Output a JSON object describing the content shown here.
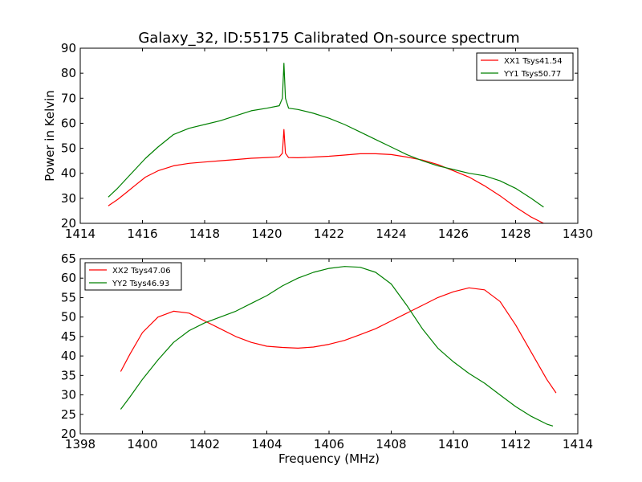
{
  "chart_data": [
    {
      "type": "line",
      "title": "Galaxy_32, ID:55175 Calibrated On-source spectrum",
      "xlabel": "",
      "ylabel": "Power in Kelvin",
      "xlim": [
        1414,
        1430
      ],
      "ylim": [
        20,
        90
      ],
      "x_ticks": [
        "1414",
        "1416",
        "1418",
        "1420",
        "1422",
        "1424",
        "1426",
        "1428",
        "1430"
      ],
      "y_ticks": [
        "20",
        "30",
        "40",
        "50",
        "60",
        "70",
        "80",
        "90"
      ],
      "legend_position": "top-right",
      "grid": false,
      "series": [
        {
          "name": "XX1 Tsys41.54",
          "color": "#ff0000",
          "x": [
            1414.9,
            1415.2,
            1415.5,
            1415.8,
            1416.1,
            1416.5,
            1417.0,
            1417.5,
            1418.0,
            1418.5,
            1419.0,
            1419.5,
            1420.0,
            1420.4,
            1420.5,
            1420.55,
            1420.6,
            1420.7,
            1421.0,
            1421.5,
            1422.0,
            1422.5,
            1423.0,
            1423.5,
            1424.0,
            1424.5,
            1425.0,
            1425.5,
            1426.0,
            1426.5,
            1427.0,
            1427.5,
            1428.0,
            1428.5,
            1428.9
          ],
          "y": [
            27,
            29.5,
            32.5,
            35.5,
            38.5,
            41,
            43,
            44,
            44.5,
            45,
            45.5,
            46,
            46.3,
            46.6,
            48,
            57.5,
            48,
            46.3,
            46.2,
            46.5,
            46.8,
            47.3,
            47.8,
            47.8,
            47.5,
            46.5,
            45.3,
            43.5,
            41,
            38.5,
            35,
            31,
            26.5,
            22.5,
            20
          ]
        },
        {
          "name": "YY1 Tsys50.77",
          "color": "#008000",
          "x": [
            1414.9,
            1415.2,
            1415.5,
            1415.8,
            1416.1,
            1416.5,
            1417.0,
            1417.5,
            1418.0,
            1418.5,
            1419.0,
            1419.5,
            1420.0,
            1420.4,
            1420.5,
            1420.55,
            1420.6,
            1420.7,
            1421.0,
            1421.5,
            1422.0,
            1422.5,
            1423.0,
            1423.5,
            1424.0,
            1424.5,
            1425.0,
            1425.5,
            1426.0,
            1426.5,
            1427.0,
            1427.5,
            1428.0,
            1428.5,
            1428.9
          ],
          "y": [
            30.5,
            34,
            38,
            42,
            46,
            50.5,
            55.5,
            58,
            59.5,
            61,
            63,
            65,
            66,
            67,
            70,
            84,
            70,
            66,
            65.5,
            64,
            62,
            59.5,
            56.5,
            53.5,
            50.5,
            47.5,
            45,
            43,
            41.5,
            40,
            39,
            37,
            34,
            30,
            26.5
          ]
        }
      ]
    },
    {
      "type": "line",
      "title": "",
      "xlabel": "Frequency (MHz)",
      "ylabel": "",
      "xlim": [
        1398,
        1414
      ],
      "ylim": [
        20,
        65
      ],
      "x_ticks": [
        "1398",
        "1400",
        "1402",
        "1404",
        "1406",
        "1408",
        "1410",
        "1412",
        "1414"
      ],
      "y_ticks": [
        "20",
        "25",
        "30",
        "35",
        "40",
        "45",
        "50",
        "55",
        "60",
        "65"
      ],
      "legend_position": "top-left",
      "grid": false,
      "series": [
        {
          "name": "XX2 Tsys47.06",
          "color": "#ff0000",
          "x": [
            1399.3,
            1399.6,
            1400.0,
            1400.5,
            1401.0,
            1401.5,
            1402.0,
            1402.5,
            1403.0,
            1403.5,
            1404.0,
            1404.5,
            1405.0,
            1405.5,
            1406.0,
            1406.5,
            1407.0,
            1407.5,
            1408.0,
            1408.5,
            1409.0,
            1409.5,
            1410.0,
            1410.5,
            1411.0,
            1411.5,
            1412.0,
            1412.5,
            1413.0,
            1413.3
          ],
          "y": [
            36,
            40.5,
            46,
            50,
            51.5,
            51,
            49,
            47,
            45,
            43.5,
            42.5,
            42.2,
            42,
            42.3,
            43,
            44,
            45.5,
            47,
            49,
            51,
            53,
            55,
            56.5,
            57.5,
            57,
            54,
            48,
            41,
            34,
            30.5
          ]
        },
        {
          "name": "YY2 Tsys46.93",
          "color": "#008000",
          "x": [
            1399.3,
            1399.6,
            1400.0,
            1400.5,
            1401.0,
            1401.5,
            1402.0,
            1402.5,
            1403.0,
            1403.5,
            1404.0,
            1404.5,
            1405.0,
            1405.5,
            1406.0,
            1406.5,
            1407.0,
            1407.5,
            1408.0,
            1408.5,
            1409.0,
            1409.5,
            1410.0,
            1410.5,
            1411.0,
            1411.5,
            1412.0,
            1412.5,
            1413.0,
            1413.2
          ],
          "y": [
            26.3,
            29.5,
            34,
            39,
            43.5,
            46.5,
            48.5,
            50,
            51.5,
            53.5,
            55.5,
            58,
            60,
            61.5,
            62.5,
            63,
            62.8,
            61.5,
            58.5,
            53,
            47,
            42,
            38.5,
            35.5,
            33,
            30,
            27,
            24.5,
            22.5,
            22
          ]
        }
      ]
    }
  ]
}
